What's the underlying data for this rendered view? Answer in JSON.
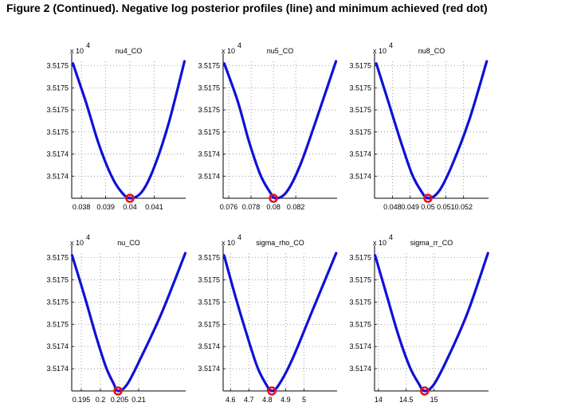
{
  "figure": {
    "title": "Figure 2 (Continued). Negative log posterior profiles (line) and minimum achieved (red dot)"
  },
  "colors": {
    "curve": "#1010d8",
    "minimum_dot": "#e8101a",
    "axis": "#000000",
    "grid": "#777777"
  },
  "chart_data": [
    {
      "type": "line",
      "title": "nu4_CO",
      "exponent_base": "x 10",
      "exponent_power": "4",
      "xlabel": "",
      "ylabel": "",
      "xlim": [
        0.0376,
        0.0423
      ],
      "ylim": [
        0,
        6.2
      ],
      "x_ticks": [
        0.038,
        0.039,
        0.04,
        0.041
      ],
      "x_tick_labels": [
        "0.038",
        "0.039",
        "0.04",
        "0.041"
      ],
      "y_ticks": [
        1,
        2,
        3,
        4,
        5,
        6
      ],
      "y_tick_labels": [
        "3.5174",
        "3.5174",
        "3.5175",
        "3.5175",
        "3.5175",
        "3.5175"
      ],
      "grid": true,
      "x": [
        0.03765,
        0.0382,
        0.0387,
        0.0392,
        0.0396,
        0.04,
        0.0405,
        0.041,
        0.0416,
        0.04225
      ],
      "y": [
        6.1,
        4.3,
        2.5,
        1.1,
        0.35,
        0.0,
        0.3,
        1.4,
        3.4,
        6.2
      ],
      "minimum": {
        "x": 0.04,
        "y": 0.0
      }
    },
    {
      "type": "line",
      "title": "nu5_CO",
      "exponent_base": "x 10",
      "exponent_power": "4",
      "xlabel": "",
      "ylabel": "",
      "xlim": [
        0.0755,
        0.0857
      ],
      "ylim": [
        0,
        6.2
      ],
      "x_ticks": [
        0.076,
        0.078,
        0.08,
        0.082
      ],
      "x_tick_labels": [
        "0.076",
        "0.078",
        "0.08",
        "0.082"
      ],
      "y_ticks": [
        1,
        2,
        3,
        4,
        5,
        6
      ],
      "y_tick_labels": [
        "3.5174",
        "3.5174",
        "3.5175",
        "3.5175",
        "3.5175",
        "3.5175"
      ],
      "grid": true,
      "x": [
        0.0756,
        0.0768,
        0.0778,
        0.0788,
        0.0796,
        0.0802,
        0.0812,
        0.0824,
        0.0838,
        0.0856
      ],
      "y": [
        6.1,
        4.4,
        2.6,
        1.1,
        0.35,
        0.0,
        0.3,
        1.5,
        3.5,
        6.2
      ],
      "minimum": {
        "x": 0.08,
        "y": 0.0
      }
    },
    {
      "type": "line",
      "title": "nu8_CO",
      "exponent_base": "x 10",
      "exponent_power": "4",
      "xlabel": "",
      "ylabel": "",
      "xlim": [
        0.047,
        0.0534
      ],
      "ylim": [
        0,
        6.2
      ],
      "x_ticks": [
        0.048,
        0.049,
        0.05,
        0.051,
        0.052
      ],
      "x_tick_labels": [
        "0.048",
        "0.049",
        "0.05",
        "0.051",
        "0.052"
      ],
      "y_ticks": [
        1,
        2,
        3,
        4,
        5,
        6
      ],
      "y_tick_labels": [
        "3.5174",
        "3.5174",
        "3.5175",
        "3.5175",
        "3.5175",
        "3.5175"
      ],
      "grid": true,
      "x": [
        0.0471,
        0.0478,
        0.0485,
        0.0491,
        0.0496,
        0.05,
        0.0506,
        0.0513,
        0.0523,
        0.0533
      ],
      "y": [
        6.1,
        4.3,
        2.5,
        1.1,
        0.35,
        0.0,
        0.3,
        1.4,
        3.5,
        6.2
      ],
      "minimum": {
        "x": 0.05,
        "y": 0.0
      }
    },
    {
      "type": "line",
      "title": "nu_CO",
      "exponent_base": "x 10",
      "exponent_power": "4",
      "xlabel": "",
      "ylabel": "",
      "xlim": [
        0.1925,
        0.2223
      ],
      "ylim": [
        0,
        6.2
      ],
      "x_ticks": [
        0.195,
        0.2,
        0.205,
        0.21
      ],
      "x_tick_labels": [
        "0.195",
        "0.2",
        "0.205",
        "0.21"
      ],
      "y_ticks": [
        1,
        2,
        3,
        4,
        5,
        6
      ],
      "y_tick_labels": [
        "3.5174",
        "3.5174",
        "3.5175",
        "3.5175",
        "3.5175",
        "3.5175"
      ],
      "grid": true,
      "x": [
        0.1926,
        0.1958,
        0.1988,
        0.2014,
        0.2034,
        0.2046,
        0.207,
        0.2106,
        0.216,
        0.2222
      ],
      "y": [
        6.1,
        4.3,
        2.5,
        1.1,
        0.35,
        0.0,
        0.3,
        1.5,
        3.5,
        6.2
      ],
      "minimum": {
        "x": 0.2046,
        "y": 0.0
      }
    },
    {
      "type": "line",
      "title": "sigma_rho_CO",
      "exponent_base": "x 10",
      "exponent_power": "4",
      "xlabel": "",
      "ylabel": "",
      "xlim": [
        4.56,
        5.18
      ],
      "ylim": [
        0,
        6.2
      ],
      "x_ticks": [
        4.6,
        4.7,
        4.8,
        4.9,
        5
      ],
      "x_tick_labels": [
        "4.6",
        "4.7",
        "4.8",
        "4.9",
        "5"
      ],
      "y_ticks": [
        1,
        2,
        3,
        4,
        5,
        6
      ],
      "y_tick_labels": [
        "3.5174",
        "3.5174",
        "3.5175",
        "3.5175",
        "3.5175",
        "3.5175"
      ],
      "grid": true,
      "x": [
        4.565,
        4.625,
        4.69,
        4.745,
        4.79,
        4.825,
        4.865,
        4.935,
        5.04,
        5.175
      ],
      "y": [
        6.1,
        4.3,
        2.5,
        1.1,
        0.35,
        0.0,
        0.3,
        1.4,
        3.5,
        6.2
      ],
      "minimum": {
        "x": 4.825,
        "y": 0.0
      }
    },
    {
      "type": "line",
      "title": "sigma_rr_CO",
      "exponent_base": "x 10",
      "exponent_power": "4",
      "xlabel": "",
      "ylabel": "",
      "xlim": [
        13.93,
        15.98
      ],
      "ylim": [
        0,
        6.2
      ],
      "x_ticks": [
        14,
        14.5,
        15
      ],
      "x_tick_labels": [
        "14",
        "14.5",
        "15"
      ],
      "y_ticks": [
        1,
        2,
        3,
        4,
        5,
        6
      ],
      "y_tick_labels": [
        "3.5174",
        "3.5174",
        "3.5175",
        "3.5175",
        "3.5175",
        "3.5175"
      ],
      "grid": true,
      "x": [
        13.94,
        14.15,
        14.36,
        14.56,
        14.72,
        14.83,
        15.0,
        15.25,
        15.6,
        15.97
      ],
      "y": [
        6.1,
        4.3,
        2.5,
        1.1,
        0.35,
        0.0,
        0.3,
        1.5,
        3.5,
        6.2
      ],
      "minimum": {
        "x": 14.83,
        "y": 0.0
      }
    }
  ]
}
